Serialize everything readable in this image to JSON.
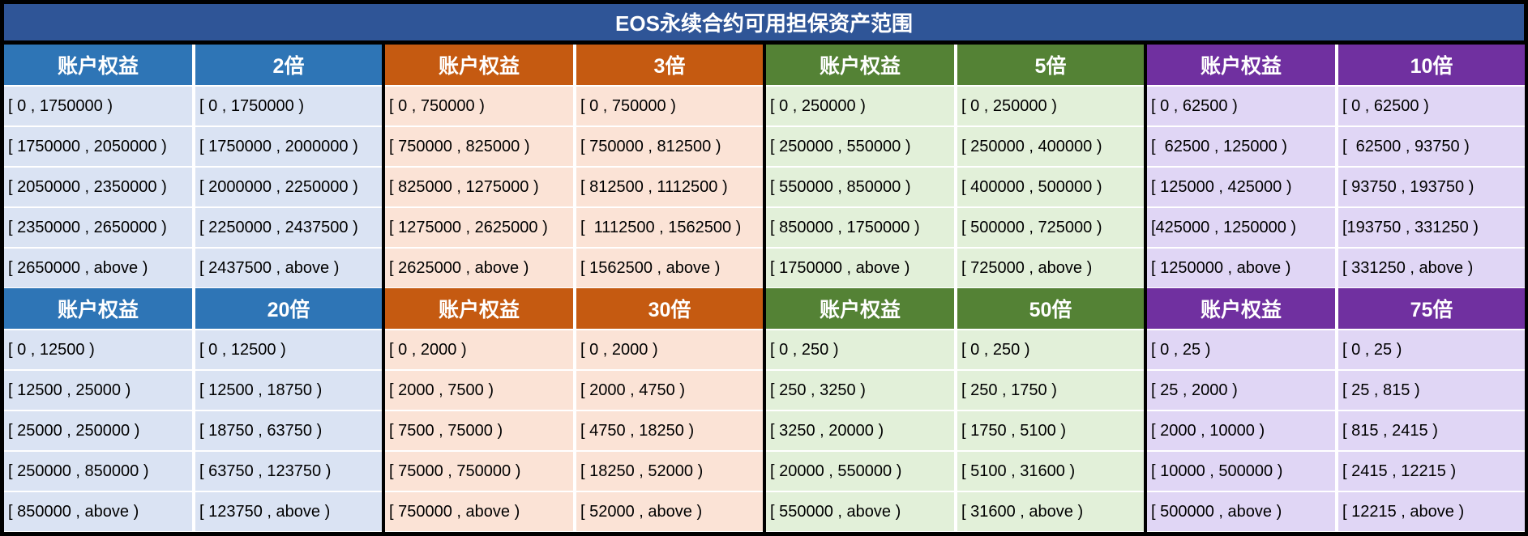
{
  "title": "EOS永续合约可用担保资产范围",
  "colors": {
    "blue": {
      "header": "#2e75b6",
      "body": "#dae3f3"
    },
    "orange": {
      "header": "#c55a11",
      "body": "#fbe3d6"
    },
    "green": {
      "header": "#548235",
      "body": "#e2f0d9"
    },
    "purple": {
      "header": "#7030a0",
      "body": "#e0d6f5"
    }
  },
  "groups": [
    {
      "color": "blue",
      "equity_label": "账户权益",
      "tier_label": "2倍",
      "rows": [
        [
          "[ 0 , 1750000 )",
          "[ 0 , 1750000 )"
        ],
        [
          "[ 1750000 , 2050000 )",
          "[ 1750000 , 2000000 )"
        ],
        [
          "[ 2050000 , 2350000 )",
          "[ 2000000 , 2250000 )"
        ],
        [
          "[ 2350000 , 2650000 )",
          "[ 2250000 , 2437500 )"
        ],
        [
          "[ 2650000 , above )",
          "[ 2437500 , above )"
        ]
      ]
    },
    {
      "color": "orange",
      "equity_label": "账户权益",
      "tier_label": "3倍",
      "rows": [
        [
          "[ 0 , 750000 )",
          "[ 0 , 750000 )"
        ],
        [
          "[ 750000 , 825000 )",
          "[ 750000 , 812500 )"
        ],
        [
          "[ 825000 , 1275000 )",
          "[ 812500 , 1112500 )"
        ],
        [
          "[ 1275000 , 2625000 )",
          "[  1112500 , 1562500 )"
        ],
        [
          "[ 2625000 , above )",
          "[ 1562500 , above )"
        ]
      ]
    },
    {
      "color": "green",
      "equity_label": "账户权益",
      "tier_label": "5倍",
      "rows": [
        [
          "[ 0 , 250000 )",
          "[ 0 , 250000 )"
        ],
        [
          "[ 250000 , 550000 )",
          "[ 250000 , 400000 )"
        ],
        [
          "[ 550000 , 850000 )",
          "[ 400000 , 500000 )"
        ],
        [
          "[ 850000 , 1750000 )",
          "[ 500000 , 725000 )"
        ],
        [
          "[ 1750000 , above )",
          "[ 725000 , above )"
        ]
      ]
    },
    {
      "color": "purple",
      "equity_label": "账户权益",
      "tier_label": "10倍",
      "rows": [
        [
          "[ 0 , 62500 )",
          "[ 0 , 62500 )"
        ],
        [
          "[  62500 , 125000 )",
          "[  62500 , 93750 )"
        ],
        [
          "[ 125000 , 425000 )",
          "[ 93750 , 193750 )"
        ],
        [
          "[425000 , 1250000 )",
          "[193750 , 331250 )"
        ],
        [
          "[ 1250000 , above )",
          "[ 331250 , above )"
        ]
      ]
    },
    {
      "color": "blue",
      "equity_label": "账户权益",
      "tier_label": "20倍",
      "rows": [
        [
          "[ 0 , 12500 )",
          "[ 0 , 12500 )"
        ],
        [
          "[ 12500 , 25000 )",
          "[ 12500 , 18750 )"
        ],
        [
          "[ 25000 , 250000 )",
          "[ 18750 , 63750 )"
        ],
        [
          "[ 250000 , 850000 )",
          "[ 63750 , 123750 )"
        ],
        [
          "[ 850000 , above )",
          "[ 123750 , above )"
        ]
      ]
    },
    {
      "color": "orange",
      "equity_label": "账户权益",
      "tier_label": "30倍",
      "rows": [
        [
          "[ 0 , 2000 )",
          "[ 0 , 2000 )"
        ],
        [
          "[ 2000 , 7500 )",
          "[ 2000 , 4750 )"
        ],
        [
          "[ 7500 , 75000 )",
          "[ 4750 , 18250 )"
        ],
        [
          "[ 75000 , 750000 )",
          "[ 18250 , 52000 )"
        ],
        [
          "[ 750000 , above )",
          "[ 52000 , above )"
        ]
      ]
    },
    {
      "color": "green",
      "equity_label": "账户权益",
      "tier_label": "50倍",
      "rows": [
        [
          "[ 0 , 250 )",
          "[ 0 , 250 )"
        ],
        [
          "[ 250 , 3250 )",
          "[ 250 , 1750 )"
        ],
        [
          "[ 3250 , 20000 )",
          "[ 1750 , 5100 )"
        ],
        [
          "[ 20000 , 550000 )",
          "[ 5100 , 31600 )"
        ],
        [
          "[ 550000 , above )",
          "[ 31600 , above )"
        ]
      ]
    },
    {
      "color": "purple",
      "equity_label": "账户权益",
      "tier_label": "75倍",
      "rows": [
        [
          "[ 0 , 25 )",
          "[ 0 , 25 )"
        ],
        [
          "[ 25 , 2000 )",
          "[ 25 , 815 )"
        ],
        [
          "[ 2000 , 10000 )",
          "[ 815 , 2415 )"
        ],
        [
          "[ 10000 , 500000 )",
          "[ 2415 , 12215 )"
        ],
        [
          "[ 500000 , above )",
          "[ 12215 , above )"
        ]
      ]
    }
  ]
}
